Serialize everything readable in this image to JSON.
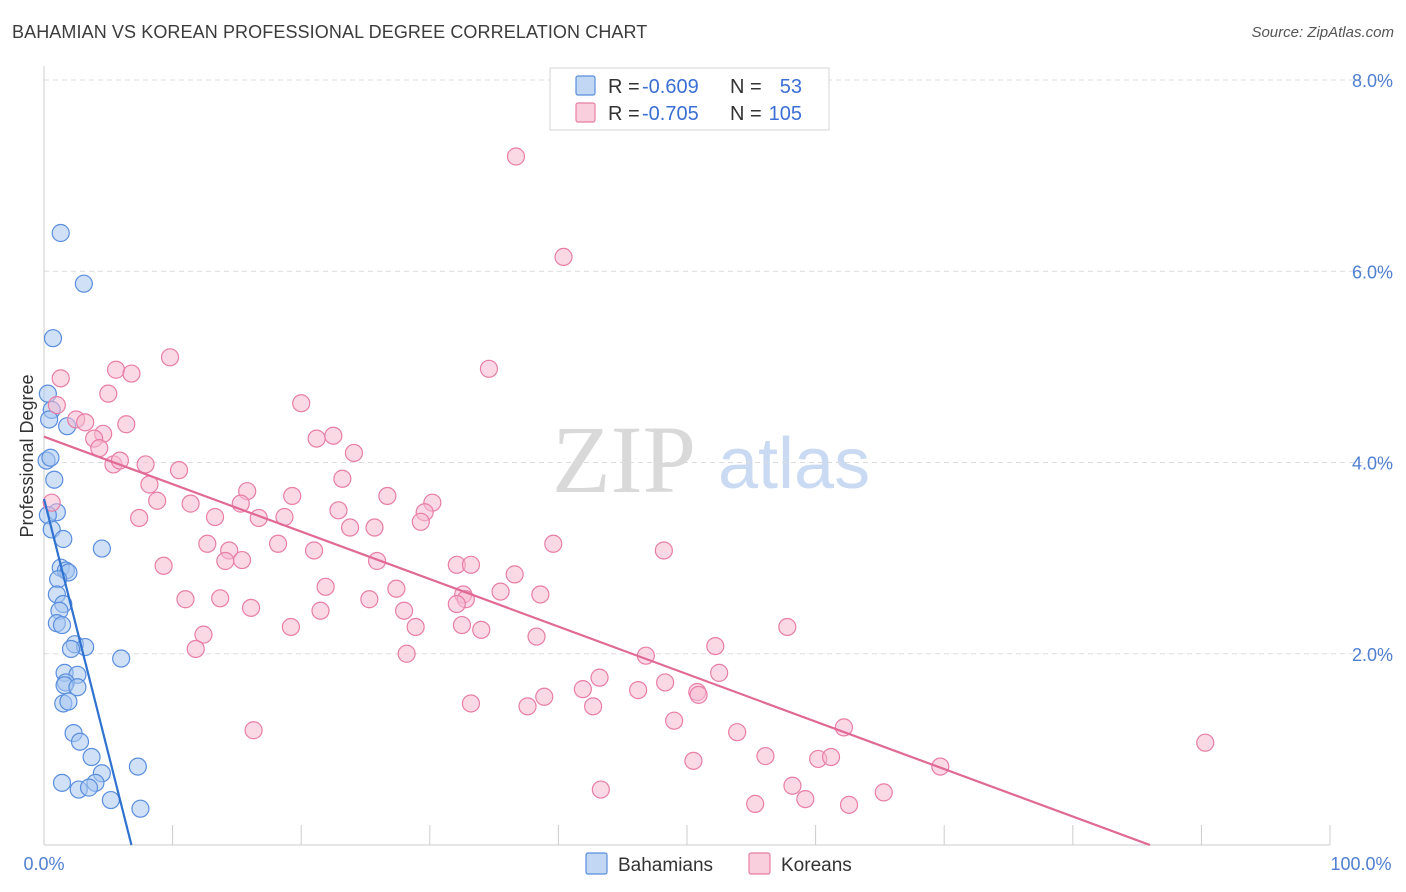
{
  "chart_data": {
    "type": "scatter",
    "title": "BAHAMIAN VS KOREAN PROFESSIONAL DEGREE CORRELATION CHART",
    "source": "Source: ZipAtlas.com",
    "ylabel": "Professional Degree",
    "xlabel": "",
    "xlim": [
      0,
      100
    ],
    "ylim": [
      0,
      8
    ],
    "x_tick_labels": [
      "0.0%",
      "100.0%"
    ],
    "y_ticks": [
      2,
      4,
      6,
      8
    ],
    "y_tick_labels": [
      "2.0%",
      "4.0%",
      "6.0%",
      "8.0%"
    ],
    "grid": true,
    "watermark": {
      "zip": "ZIP",
      "atlas": "atlas"
    },
    "legend": {
      "r_label": "R =",
      "n_label": "N =",
      "entries": [
        {
          "name": "Bahamians",
          "r": "-0.609",
          "n": "53"
        },
        {
          "name": "Koreans",
          "r": "-0.705",
          "n": "105"
        }
      ]
    },
    "colors": {
      "bahamians_fill": "#a8c6f0",
      "bahamians_stroke": "#5a8ede",
      "bahamians_line": "#2f72d0",
      "koreans_fill": "#f6b9cf",
      "koreans_stroke": "#e87ea5",
      "koreans_line": "#e06a94",
      "grid": "#dcdcdc",
      "axis_label": "#4f7fd0"
    },
    "series": [
      {
        "name": "Bahamians",
        "trend": {
          "x0": 0,
          "y0": 3.62,
          "x1": 6.8,
          "y1": 0.0
        },
        "points": [
          [
            1.3,
            6.4
          ],
          [
            3.1,
            5.87
          ],
          [
            0.7,
            5.3
          ],
          [
            0.3,
            4.72
          ],
          [
            0.6,
            4.55
          ],
          [
            1.8,
            4.38
          ],
          [
            0.4,
            4.45
          ],
          [
            0.2,
            4.02
          ],
          [
            0.5,
            4.05
          ],
          [
            0.8,
            3.82
          ],
          [
            1.0,
            3.48
          ],
          [
            0.3,
            3.45
          ],
          [
            0.6,
            3.3
          ],
          [
            1.5,
            3.2
          ],
          [
            4.5,
            3.1
          ],
          [
            1.3,
            2.9
          ],
          [
            1.7,
            2.87
          ],
          [
            1.9,
            2.85
          ],
          [
            1.1,
            2.78
          ],
          [
            1.0,
            2.62
          ],
          [
            1.5,
            2.52
          ],
          [
            1.2,
            2.45
          ],
          [
            1.0,
            2.32
          ],
          [
            1.4,
            2.3
          ],
          [
            2.4,
            2.1
          ],
          [
            3.2,
            2.07
          ],
          [
            2.1,
            2.05
          ],
          [
            6.0,
            1.95
          ],
          [
            1.6,
            1.8
          ],
          [
            2.6,
            1.78
          ],
          [
            1.7,
            1.7
          ],
          [
            1.6,
            1.67
          ],
          [
            2.6,
            1.65
          ],
          [
            1.5,
            1.48
          ],
          [
            1.9,
            1.5
          ],
          [
            2.3,
            1.17
          ],
          [
            2.8,
            1.08
          ],
          [
            3.7,
            0.92
          ],
          [
            7.3,
            0.82
          ],
          [
            4.5,
            0.75
          ],
          [
            1.4,
            0.65
          ],
          [
            4.0,
            0.65
          ],
          [
            2.7,
            0.58
          ],
          [
            3.5,
            0.6
          ],
          [
            5.2,
            0.47
          ],
          [
            7.5,
            0.38
          ]
        ]
      },
      {
        "name": "Koreans",
        "trend": {
          "x0": 0,
          "y0": 4.27,
          "x1": 86.0,
          "y1": 0.0
        },
        "points": [
          [
            36.7,
            7.2
          ],
          [
            40.4,
            6.15
          ],
          [
            9.8,
            5.1
          ],
          [
            5.6,
            4.97
          ],
          [
            1.3,
            4.88
          ],
          [
            6.8,
            4.93
          ],
          [
            34.6,
            4.98
          ],
          [
            20.0,
            4.62
          ],
          [
            5.0,
            4.72
          ],
          [
            1.0,
            4.6
          ],
          [
            2.5,
            4.45
          ],
          [
            3.2,
            4.42
          ],
          [
            6.4,
            4.4
          ],
          [
            21.2,
            4.25
          ],
          [
            22.5,
            4.28
          ],
          [
            4.6,
            4.3
          ],
          [
            3.9,
            4.25
          ],
          [
            4.3,
            4.15
          ],
          [
            24.1,
            4.1
          ],
          [
            5.4,
            3.98
          ],
          [
            7.9,
            3.98
          ],
          [
            10.5,
            3.92
          ],
          [
            5.9,
            4.02
          ],
          [
            23.2,
            3.83
          ],
          [
            8.2,
            3.77
          ],
          [
            0.6,
            3.58
          ],
          [
            15.8,
            3.7
          ],
          [
            19.3,
            3.65
          ],
          [
            26.7,
            3.65
          ],
          [
            8.8,
            3.6
          ],
          [
            11.4,
            3.57
          ],
          [
            15.3,
            3.57
          ],
          [
            30.2,
            3.58
          ],
          [
            29.6,
            3.48
          ],
          [
            22.9,
            3.5
          ],
          [
            18.7,
            3.43
          ],
          [
            16.7,
            3.42
          ],
          [
            13.3,
            3.43
          ],
          [
            7.4,
            3.42
          ],
          [
            29.3,
            3.38
          ],
          [
            23.8,
            3.32
          ],
          [
            25.7,
            3.32
          ],
          [
            12.7,
            3.15
          ],
          [
            14.4,
            3.08
          ],
          [
            21.0,
            3.08
          ],
          [
            18.2,
            3.15
          ],
          [
            39.6,
            3.15
          ],
          [
            48.2,
            3.08
          ],
          [
            25.9,
            2.97
          ],
          [
            32.1,
            2.93
          ],
          [
            33.2,
            2.93
          ],
          [
            14.1,
            2.97
          ],
          [
            15.4,
            2.98
          ],
          [
            9.3,
            2.92
          ],
          [
            36.6,
            2.83
          ],
          [
            27.4,
            2.68
          ],
          [
            21.9,
            2.7
          ],
          [
            32.6,
            2.62
          ],
          [
            35.5,
            2.65
          ],
          [
            32.8,
            2.57
          ],
          [
            11.0,
            2.57
          ],
          [
            13.7,
            2.58
          ],
          [
            25.3,
            2.57
          ],
          [
            38.6,
            2.62
          ],
          [
            32.1,
            2.52
          ],
          [
            16.1,
            2.48
          ],
          [
            28.0,
            2.45
          ],
          [
            21.5,
            2.45
          ],
          [
            38.3,
            2.18
          ],
          [
            57.8,
            2.28
          ],
          [
            19.2,
            2.28
          ],
          [
            28.9,
            2.28
          ],
          [
            32.5,
            2.3
          ],
          [
            34.0,
            2.25
          ],
          [
            12.4,
            2.2
          ],
          [
            11.8,
            2.05
          ],
          [
            28.2,
            2.0
          ],
          [
            52.2,
            2.08
          ],
          [
            46.8,
            1.98
          ],
          [
            52.5,
            1.8
          ],
          [
            43.2,
            1.75
          ],
          [
            41.9,
            1.63
          ],
          [
            46.2,
            1.62
          ],
          [
            48.3,
            1.7
          ],
          [
            50.8,
            1.6
          ],
          [
            50.9,
            1.57
          ],
          [
            33.2,
            1.48
          ],
          [
            37.6,
            1.45
          ],
          [
            38.9,
            1.55
          ],
          [
            42.7,
            1.45
          ],
          [
            49.0,
            1.3
          ],
          [
            62.2,
            1.23
          ],
          [
            16.3,
            1.2
          ],
          [
            53.9,
            1.18
          ],
          [
            90.3,
            1.07
          ],
          [
            56.1,
            0.93
          ],
          [
            60.2,
            0.9
          ],
          [
            61.2,
            0.92
          ],
          [
            50.5,
            0.88
          ],
          [
            69.7,
            0.82
          ],
          [
            58.2,
            0.62
          ],
          [
            43.3,
            0.58
          ],
          [
            65.3,
            0.55
          ],
          [
            59.2,
            0.48
          ],
          [
            55.3,
            0.43
          ],
          [
            62.6,
            0.42
          ]
        ]
      }
    ]
  }
}
